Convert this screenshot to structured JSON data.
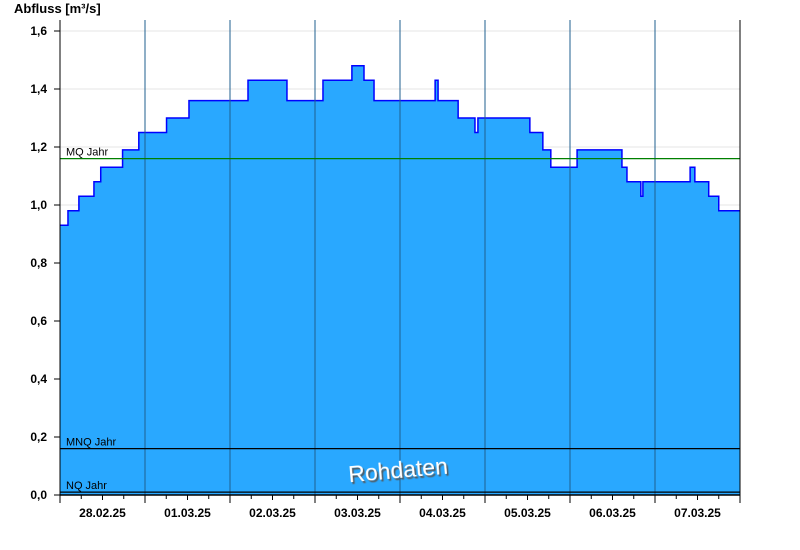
{
  "chart_data": {
    "type": "area",
    "ylabel": "Abfluss [m³/s]",
    "ylim": [
      0,
      1.6
    ],
    "yticks": [
      "0,0",
      "0,2",
      "0,4",
      "0,6",
      "0,8",
      "1,0",
      "1,2",
      "1,4",
      "1,6"
    ],
    "xlim": [
      "28.02.25 00:00",
      "08.03.25 00:00"
    ],
    "xtick_labels": [
      "28.02.25",
      "01.03.25",
      "02.03.25",
      "03.03.25",
      "04.03.25",
      "05.03.25",
      "06.03.25",
      "07.03.25"
    ],
    "grid": "horizontal light gridlines, vertical day lines",
    "step": true,
    "series": [
      {
        "color": "#29a8ff",
        "line_color": "#0000ff",
        "points": [
          [
            "28.02.25 00:00",
            0.93
          ],
          [
            "28.02.25 02:15",
            0.98
          ],
          [
            "28.02.25 05:20",
            1.03
          ],
          [
            "28.02.25 09:35",
            1.08
          ],
          [
            "28.02.25 11:30",
            1.13
          ],
          [
            "28.02.25 17:40",
            1.19
          ],
          [
            "28.02.25 22:15",
            1.25
          ],
          [
            "01.03.25 06:05",
            1.3
          ],
          [
            "01.03.25 12:25",
            1.36
          ],
          [
            "02.03.25 05:05",
            1.43
          ],
          [
            "02.03.25 16:05",
            1.36
          ],
          [
            "03.03.25 02:15",
            1.43
          ],
          [
            "03.03.25 10:25",
            1.48
          ],
          [
            "03.03.25 13:50",
            1.43
          ],
          [
            "03.03.25 16:40",
            1.36
          ],
          [
            "04.03.25 09:55",
            1.43
          ],
          [
            "04.03.25 10:45",
            1.36
          ],
          [
            "04.03.25 16:25",
            1.3
          ],
          [
            "04.03.25 21:10",
            1.25
          ],
          [
            "04.03.25 22:00",
            1.3
          ],
          [
            "05.03.25 12:40",
            1.25
          ],
          [
            "05.03.25 16:20",
            1.19
          ],
          [
            "05.03.25 18:35",
            1.13
          ],
          [
            "06.03.25 02:00",
            1.19
          ],
          [
            "06.03.25 14:40",
            1.13
          ],
          [
            "06.03.25 16:05",
            1.08
          ],
          [
            "06.03.25 20:00",
            1.03
          ],
          [
            "06.03.25 20:35",
            1.08
          ],
          [
            "07.03.25 09:55",
            1.13
          ],
          [
            "07.03.25 11:15",
            1.08
          ],
          [
            "07.03.25 15:10",
            1.03
          ],
          [
            "07.03.25 18:00",
            0.98
          ],
          [
            "08.03.25 00:00",
            0.98
          ]
        ]
      }
    ],
    "reference_lines": [
      {
        "label": "MQ Jahr",
        "value": 1.16,
        "color": "#008000"
      },
      {
        "label": "MNQ Jahr",
        "value": 0.16,
        "color": "#000000"
      },
      {
        "label": "NQ Jahr",
        "value": 0.01,
        "color": "#000000"
      }
    ],
    "watermark": "Rohdaten"
  }
}
